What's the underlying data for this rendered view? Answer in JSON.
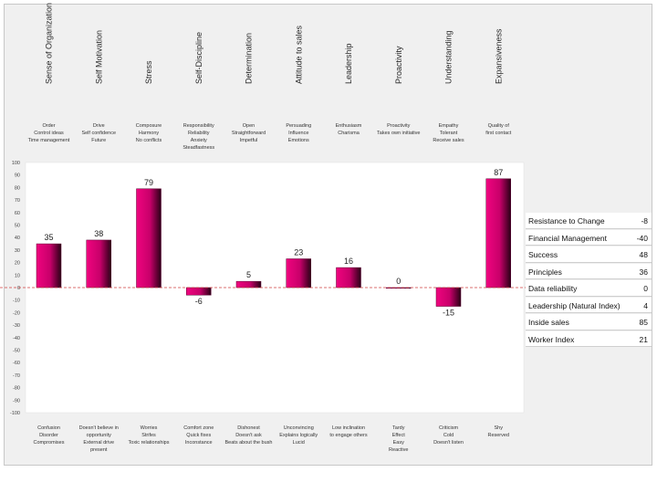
{
  "chart_data": {
    "type": "bar",
    "title": "",
    "xlabel": "",
    "ylabel": "",
    "ylim": [
      -100,
      100
    ],
    "yticks": [
      100,
      90,
      80,
      70,
      60,
      50,
      40,
      30,
      20,
      10,
      0,
      -10,
      -20,
      -30,
      -40,
      -50,
      -60,
      -70,
      -80,
      -90,
      -100
    ],
    "categories": [
      "Sense of Organization",
      "Self Motivation",
      "Stress",
      "Self-Discipline",
      "Determination",
      "Attitude to sales",
      "Leadership",
      "Proactivity",
      "Understanding",
      "Expansiveness"
    ],
    "values": [
      35,
      38,
      79,
      -6,
      5,
      23,
      16,
      0,
      -15,
      87
    ],
    "value_labels": [
      "35",
      "38",
      "79",
      "-6",
      "5",
      "23",
      "16",
      "0",
      "-15",
      "87"
    ],
    "top_descriptors": [
      [
        "Order",
        "Control ideas",
        "Time management"
      ],
      [
        "Drive",
        "Self confidence",
        "Future"
      ],
      [
        "Composure",
        "Harmony",
        "No conflicts"
      ],
      [
        "Responsibility",
        "Reliability",
        "Anxiety",
        "Steadfastness"
      ],
      [
        "Open",
        "Straightforward",
        "Impetful"
      ],
      [
        "Persuading",
        "Influence",
        "Emotions"
      ],
      [
        "Enthusiasm",
        "Charisma"
      ],
      [
        "Proactivity",
        "Takes own initiative"
      ],
      [
        "Empathy",
        "Tolerant",
        "Receive sales"
      ],
      [
        "Quality of",
        "first contact"
      ]
    ],
    "bottom_descriptors": [
      [
        "Confusion",
        "Disorder",
        "Compromises"
      ],
      [
        "Doesn't believe in",
        "opportunity",
        "External drive",
        "present"
      ],
      [
        "Worries",
        "Strifes",
        "Toxic relationships"
      ],
      [
        "Comfort zone",
        "Quick fixes",
        "Inconstance"
      ],
      [
        "Dishonest",
        "Doesn't ask",
        "Beats about the bush"
      ],
      [
        "Unconvincing",
        "Explains logically",
        "Lucid"
      ],
      [
        "Low inclination",
        "to engage others"
      ],
      [
        "Tardy",
        "Effect",
        "Easy",
        "Reactive"
      ],
      [
        "Criticism",
        "Cold",
        "Doesn't listen"
      ],
      [
        "Shy",
        "Reserved"
      ]
    ],
    "legend_position": "right",
    "bar_color": "#e0006e",
    "zero_line_color": "#d04040"
  },
  "indices": [
    {
      "label": "Resistance to Change",
      "value": "-8"
    },
    {
      "label": "Financial Management",
      "value": "-40"
    },
    {
      "label": "Success",
      "value": "48"
    },
    {
      "label": "Principles",
      "value": "36"
    },
    {
      "label": "Data reliability",
      "value": "0"
    },
    {
      "label": "Leadership (Natural Index)",
      "value": "4"
    },
    {
      "label": "Inside sales",
      "value": "85"
    },
    {
      "label": "Worker Index",
      "value": "21"
    }
  ]
}
